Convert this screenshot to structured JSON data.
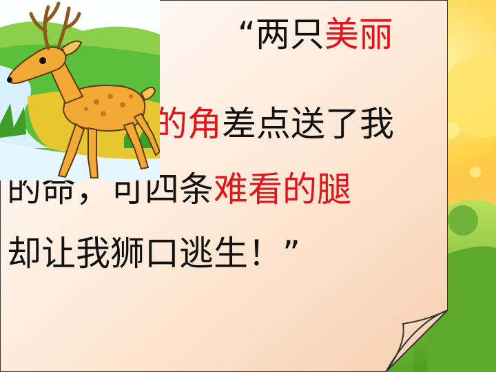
{
  "slide": {
    "lines": [
      {
        "parts": [
          {
            "text": "“两只",
            "color": "black"
          },
          {
            "text": "美丽",
            "color": "red"
          }
        ]
      },
      {
        "parts": [
          {
            "text": "的角",
            "color": "red"
          },
          {
            "text": "差点送了我",
            "color": "black"
          }
        ]
      },
      {
        "parts": [
          {
            "text": "的命，可四条",
            "color": "black"
          },
          {
            "text": "难看的腿",
            "color": "red"
          }
        ]
      },
      {
        "parts": [
          {
            "text": "却让我狮口逃生！”",
            "color": "black"
          }
        ]
      }
    ]
  },
  "colors": {
    "accent_red": "#e0141a",
    "text": "#111111",
    "paper": "#fde6d2"
  },
  "illustration": {
    "name": "deer-illustration"
  }
}
